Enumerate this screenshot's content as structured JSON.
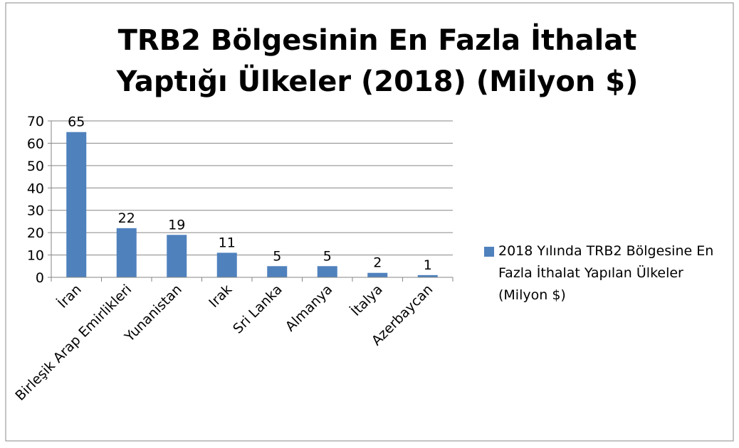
{
  "chart_data": {
    "type": "bar",
    "title": "TRB2 Bölgesinin En Fazla İthalat Yaptığı Ülkeler (2018) (Milyon $)",
    "categories": [
      "İran",
      "Birleşik Arap Emirlikleri",
      "Yunanistan",
      "Irak",
      "Sri Lanka",
      "Almanya",
      "İtalya",
      "Azerbaycan"
    ],
    "series": [
      {
        "name": "2018 Yılında TRB2 Bölgesine En Fazla İthalat Yapılan Ülkeler (Milyon $)",
        "color": "#4f81bd",
        "values": [
          65,
          22,
          19,
          11,
          5,
          5,
          2,
          1
        ]
      }
    ],
    "ylim": [
      0,
      70
    ],
    "yticks": [
      0,
      10,
      20,
      30,
      40,
      50,
      60,
      70
    ],
    "grid": true,
    "legend": "right"
  }
}
